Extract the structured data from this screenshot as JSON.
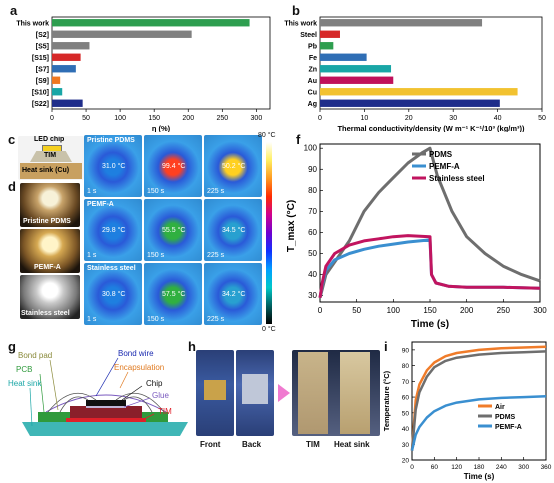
{
  "panels": {
    "a": "a",
    "b": "b",
    "c": "c",
    "d": "d",
    "e": "e",
    "f": "f",
    "g": "g",
    "h": "h",
    "i": "i"
  },
  "colors": {
    "green": "#2e9e4f",
    "gray": "#808080",
    "red": "#d62828",
    "blue": "#2f6eb5",
    "teal": "#19a6a6",
    "orange": "#f07820",
    "navy": "#1f2d8a",
    "purple": "#8a6ad8",
    "magenta": "#c0105a",
    "gold": "#f2c230",
    "pdms": "#6e6e6e",
    "pemf": "#3a8fd0",
    "steel": "#c1145f",
    "air": "#f07c2a"
  },
  "chart_data": [
    {
      "panel": "a",
      "type": "bar",
      "orientation": "horizontal",
      "categories": [
        "This work",
        "[S2]",
        "[S5]",
        "[S15]",
        "[S7]",
        "[S9]",
        "[S10]",
        "[S22]"
      ],
      "values": [
        290,
        205,
        55,
        42,
        35,
        12,
        15,
        45
      ],
      "xlabel": "η (%)",
      "xlim": [
        0,
        320
      ],
      "xticks": [
        0,
        50,
        100,
        150,
        200,
        250,
        300
      ]
    },
    {
      "panel": "b",
      "type": "bar",
      "orientation": "horizontal",
      "categories": [
        "This work",
        "Steel",
        "Pb",
        "Fe",
        "Zn",
        "Au",
        "Cu",
        "Ag"
      ],
      "values": [
        36.5,
        4.5,
        3.0,
        10.5,
        16.0,
        16.5,
        44.5,
        40.5
      ],
      "xlabel": "Thermal conductivity/density (W m⁻¹ K⁻¹/10³ (kg/m³))",
      "xlim": [
        0,
        50
      ],
      "xticks": [
        0,
        10,
        20,
        30,
        40,
        50
      ]
    },
    {
      "panel": "f",
      "type": "line",
      "xlabel": "Time (s)",
      "ylabel": "T_max (°C)",
      "xlim": [
        0,
        300
      ],
      "ylim": [
        27,
        102
      ],
      "xticks": [
        0,
        50,
        100,
        150,
        200,
        250,
        300
      ],
      "yticks": [
        30,
        40,
        50,
        60,
        70,
        80,
        90,
        100
      ],
      "legend": "top-right",
      "series": [
        {
          "name": "PDMS",
          "x": [
            0,
            3,
            8,
            20,
            40,
            60,
            80,
            100,
            120,
            140,
            150,
            160,
            180,
            200,
            225,
            250,
            275,
            300
          ],
          "y": [
            29,
            33,
            40,
            46,
            56,
            70,
            79,
            86,
            93,
            98,
            100,
            87,
            70,
            58,
            50,
            44,
            40,
            37
          ]
        },
        {
          "name": "PEMF-A",
          "x": [
            0,
            3,
            8,
            20,
            40,
            60,
            80,
            100,
            120,
            150,
            152,
            158,
            175,
            200,
            250,
            300
          ],
          "y": [
            29,
            35,
            42,
            47,
            50,
            52,
            53.5,
            54.5,
            55.5,
            56.5,
            40,
            36,
            34.5,
            34,
            34,
            33.5
          ]
        },
        {
          "name": "Stainless steel",
          "x": [
            0,
            3,
            8,
            20,
            40,
            60,
            80,
            100,
            120,
            150,
            152,
            158,
            175,
            200,
            250,
            300
          ],
          "y": [
            29,
            36,
            44,
            50,
            54,
            56,
            57,
            58,
            58.5,
            58,
            40,
            36,
            34.5,
            34,
            34,
            33.5
          ]
        }
      ]
    },
    {
      "panel": "i",
      "type": "line",
      "xlabel": "Time (s)",
      "ylabel": "Temperature (°C)",
      "xlim": [
        0,
        360
      ],
      "ylim": [
        20,
        95
      ],
      "xticks": [
        0,
        60,
        120,
        180,
        240,
        300,
        360
      ],
      "yticks": [
        20,
        30,
        40,
        50,
        60,
        70,
        80,
        90
      ],
      "legend": "center-right",
      "series": [
        {
          "name": "Air",
          "x": [
            0,
            10,
            20,
            40,
            60,
            90,
            120,
            180,
            240,
            300,
            360
          ],
          "y": [
            26,
            58,
            68,
            77,
            82,
            86,
            88,
            90,
            91,
            91.5,
            92
          ]
        },
        {
          "name": "PDMS",
          "x": [
            0,
            10,
            20,
            40,
            60,
            90,
            120,
            180,
            240,
            300,
            360
          ],
          "y": [
            26,
            52,
            63,
            73,
            79,
            83,
            85,
            87,
            88,
            88.5,
            89
          ]
        },
        {
          "name": "PEMF-A",
          "x": [
            0,
            10,
            20,
            40,
            60,
            90,
            120,
            180,
            240,
            300,
            360
          ],
          "y": [
            26,
            36,
            41,
            47,
            51,
            54.5,
            56.5,
            58.5,
            59.5,
            60,
            60.5
          ]
        }
      ]
    }
  ],
  "panel_c": {
    "led_chip": "LED chip",
    "tim": "TIM",
    "heat_sink": "Heat sink (Cu)"
  },
  "panel_d": {
    "labels": [
      "Pristine PDMS",
      "PEMF-A",
      "Stainless steel"
    ]
  },
  "panel_e": {
    "scale_max": "80 °C",
    "scale_min": "0 °C",
    "row_labels": [
      "Pristine PDMS",
      "PEMF-A",
      "Stainless steel"
    ],
    "times": [
      "1 s",
      "150 s",
      "225 s"
    ],
    "temps": [
      [
        "31.0 °C",
        "99.4 °C",
        "50.2 °C"
      ],
      [
        "29.8 °C",
        "55.5 °C",
        "34.5 °C"
      ],
      [
        "30.8 °C",
        "57.5 °C",
        "34.2 °C"
      ]
    ]
  },
  "panel_g": {
    "bond_pad": "Bond pad",
    "pcb": "PCB",
    "heat_sink": "Heat sink",
    "bond_wire": "Bond wire",
    "encapsulation": "Encapsulation",
    "chip": "Chip",
    "glue": "Glue",
    "tim": "TIM"
  },
  "panel_h": {
    "front": "Front",
    "back": "Back",
    "tim": "TIM",
    "heat_sink": "Heat sink"
  }
}
